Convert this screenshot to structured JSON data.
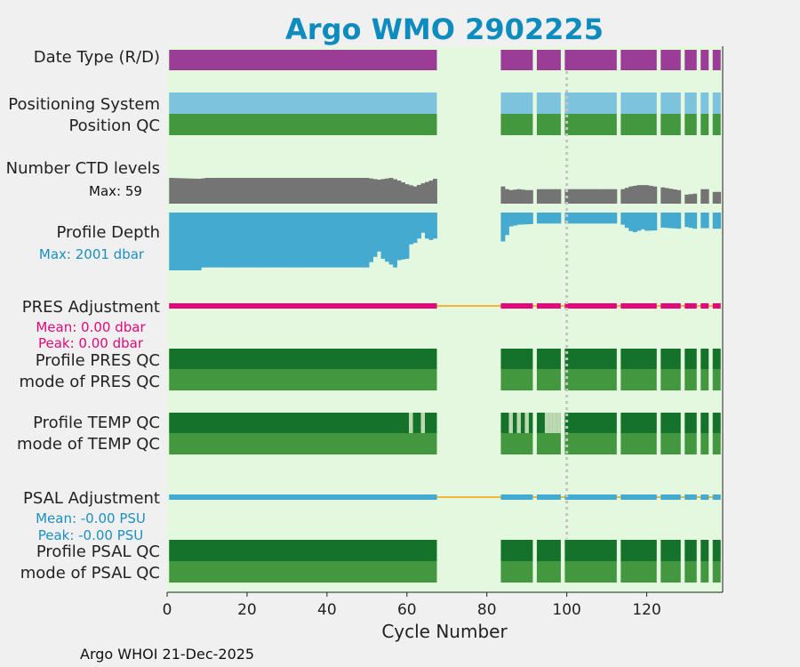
{
  "chart_data": {
    "type": "bar",
    "title": "Argo WMO 2902225",
    "xlabel": "Cycle Number",
    "xlim": [
      0,
      139
    ],
    "xticks": [
      0,
      20,
      40,
      60,
      80,
      100,
      120
    ],
    "vline_x": 100,
    "footer": "Argo WHOI 21-Dec-2025",
    "segments": [
      [
        1,
        67
      ],
      [
        84,
        91
      ],
      [
        93,
        98
      ],
      [
        100,
        112
      ],
      [
        114,
        122
      ],
      [
        124,
        128
      ],
      [
        130,
        132
      ],
      [
        134,
        135
      ],
      [
        137,
        138
      ]
    ],
    "row_labels": {
      "date_type": "Date Type (R/D)",
      "positioning": "Positioning System",
      "position_qc": "Position QC",
      "ctd_levels": "Number CTD levels",
      "ctd_max": "Max: 59",
      "profile_depth": "Profile Depth",
      "depth_max": "Max: 2001 dbar",
      "pres_adj": "PRES Adjustment",
      "pres_mean": "Mean: 0.00 dbar",
      "pres_peak": "Peak: 0.00 dbar",
      "pres_qc": "Profile PRES QC",
      "pres_mode": "mode of PRES QC",
      "temp_qc": "Profile TEMP QC",
      "temp_mode": "mode of TEMP QC",
      "psal_adj": "PSAL Adjustment",
      "psal_mean": "Mean: -0.00 PSU",
      "psal_peak": "Peak: -0.00 PSU",
      "psal_qc": "Profile PSAL QC",
      "psal_mode": "mode of PSAL QC"
    },
    "colors": {
      "title": "#0e8cbd",
      "plot_bg": "#e4f7df",
      "fig_bg": "#f0f0f0",
      "date_type": "#9b3c96",
      "positioning": "#7ec3de",
      "qc_light": "#43973f",
      "qc_dark": "#15722a",
      "qc_pale": "#bcd9b1",
      "ctd": "#747474",
      "depth": "#44aad0",
      "pres_adj": "#e1087a",
      "psal_adj": "#44aad0",
      "adj_line": "#f2b53a",
      "vline": "#c4c4c4"
    },
    "temp_qc_pale_cycles": [
      61,
      64,
      86,
      88,
      90,
      95,
      96,
      97,
      98
    ],
    "ctd_levels": {
      "max": 59,
      "cycles": [
        1,
        8,
        10,
        20,
        30,
        40,
        50,
        53,
        56,
        58,
        60,
        62,
        64,
        66,
        67,
        84,
        85,
        86,
        88,
        90,
        91,
        93,
        98,
        100,
        112,
        114,
        116,
        118,
        120,
        122,
        124,
        128,
        130,
        132,
        134,
        135,
        137,
        138
      ],
      "values": [
        57,
        55,
        57,
        57,
        57,
        57,
        57,
        53,
        57,
        51,
        43,
        38,
        45,
        51,
        55,
        38,
        32,
        30,
        32,
        30,
        30,
        32,
        32,
        32,
        32,
        32,
        38,
        41,
        41,
        38,
        36,
        30,
        20,
        22,
        32,
        32,
        26,
        26
      ]
    },
    "profile_depth": {
      "max": 2001,
      "cycles": [
        1,
        8,
        9,
        20,
        30,
        40,
        50,
        53,
        54,
        57,
        58,
        60,
        61,
        62,
        63,
        64,
        65,
        66,
        67,
        84,
        85,
        86,
        88,
        91,
        93,
        98,
        100,
        112,
        114,
        116,
        117,
        119,
        120,
        122,
        124,
        128,
        130,
        132,
        134,
        135,
        137,
        138
      ],
      "values": [
        2001,
        2001,
        1900,
        1900,
        1900,
        1900,
        1900,
        1350,
        1600,
        1900,
        1650,
        1600,
        1100,
        1050,
        900,
        700,
        900,
        950,
        900,
        1000,
        780,
        480,
        420,
        400,
        380,
        380,
        380,
        380,
        420,
        640,
        680,
        580,
        630,
        620,
        520,
        560,
        500,
        560,
        540,
        540,
        560,
        560
      ]
    }
  }
}
